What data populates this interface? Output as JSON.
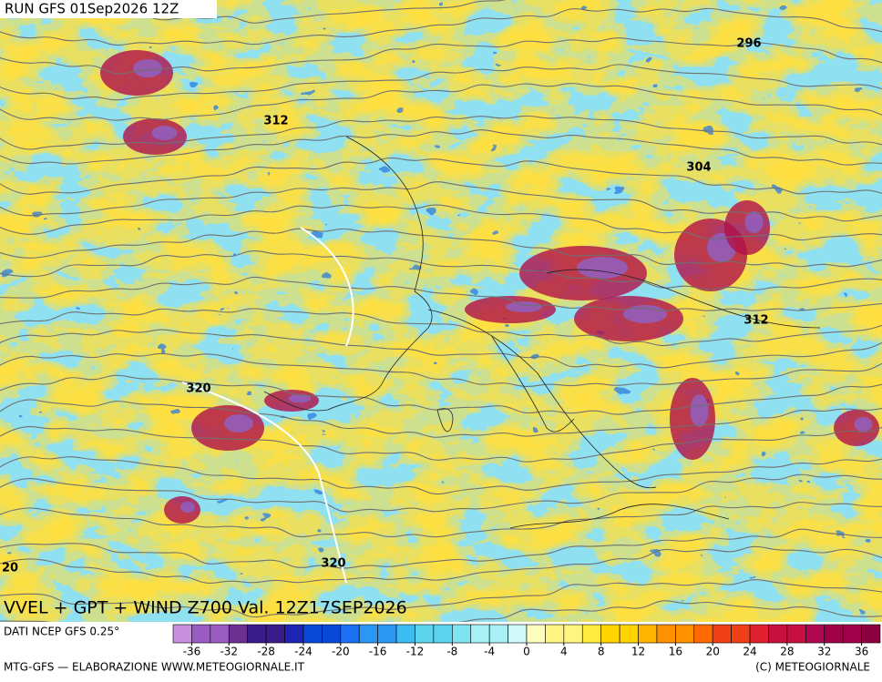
{
  "header": {
    "run": "RUN GFS 01Sep2026 12Z"
  },
  "map": {
    "contour_labels": [
      "296",
      "312",
      "304",
      "312",
      "320",
      "320",
      "20"
    ],
    "title": "VVEL + GPT + WIND Z700 Val. 12Z17SEP2026"
  },
  "legend": {
    "source": "DATI NCEP GFS 0.25°",
    "range": [
      -38,
      38
    ],
    "ticks": [
      -36,
      -32,
      -28,
      -24,
      -20,
      -16,
      -12,
      -8,
      -4,
      0,
      4,
      8,
      12,
      16,
      20,
      24,
      28,
      32,
      36
    ]
  },
  "footer": {
    "left": "MTG-GFS — ELABORAZIONE WWW.METEOGIORNALE.IT",
    "right": "(C) METEOGIORNALE"
  }
}
